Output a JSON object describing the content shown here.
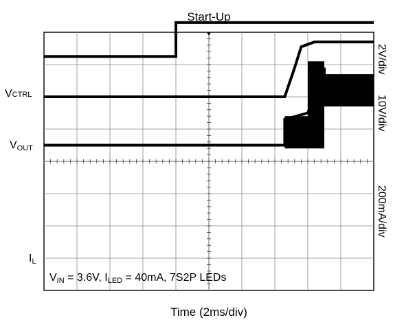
{
  "chart_data": {
    "type": "line",
    "title": "Start-Up",
    "xlabel": "Time (2ms/div)",
    "x_divisions": 10,
    "y_divisions": 8,
    "xlim": [
      0,
      10
    ],
    "ylim": [
      0,
      8
    ],
    "grid": true,
    "annotation": {
      "prefix_main": "V",
      "prefix_sub": "IN",
      "vin": " = 3.6V, ",
      "iled_main": "I",
      "iled_sub": "LED",
      "rest": " = 40mA, 7S2P LEDs"
    },
    "scale_labels": [
      "2V/div",
      "10V/div",
      "200mA/div"
    ],
    "series": [
      {
        "name_main": "V",
        "name_sub": "CTRL",
        "scale": "2V/div",
        "x": [
          0,
          4.0,
          4.0,
          10
        ],
        "y": [
          7.25,
          7.25,
          8.3,
          8.3
        ]
      },
      {
        "name_main": "V",
        "name_sub": "OUT",
        "scale": "10V/div",
        "x": [
          0,
          7.3,
          7.6,
          7.8,
          8.2,
          10
        ],
        "y": [
          6.0,
          6.0,
          6.9,
          7.55,
          7.7,
          7.7
        ]
      },
      {
        "name_main": "I",
        "name_sub": "L",
        "scale": "200mA/div",
        "x": [
          0,
          7.3,
          7.3,
          8.0,
          8.5,
          8.5,
          10
        ],
        "y": [
          4.5,
          4.5,
          5.3,
          5.5,
          6.9,
          6.2,
          6.2
        ],
        "ripple_band": [
          {
            "from": 7.3,
            "to": 8.0,
            "low": 4.4,
            "high": 5.4
          },
          {
            "from": 8.0,
            "to": 8.5,
            "low": 4.4,
            "high": 7.1
          },
          {
            "from": 8.5,
            "to": 10.0,
            "low": 5.7,
            "high": 6.7
          }
        ]
      }
    ]
  }
}
